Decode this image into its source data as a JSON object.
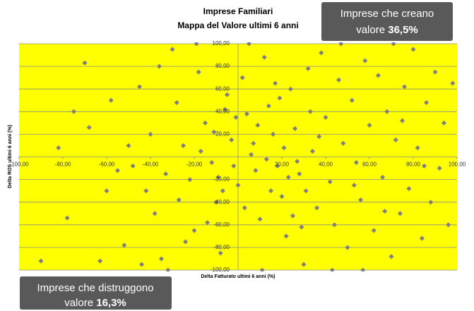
{
  "chart_data": {
    "type": "scatter",
    "title": "Imprese Familiari",
    "subtitle": "Mappa del Valore ultimi 6 anni",
    "x_label": "Delta Fatturato ultimi 6 anni (%)",
    "y_label": "Delta ROS ultimi 6 anni (%)",
    "annotations": [
      {
        "line1": "Imprese che creano",
        "line2": "valore",
        "value": "36,5%"
      },
      {
        "line1": "Imprese che distruggono",
        "line2": "valore",
        "value": "16,3%"
      }
    ],
    "background": "#ffff00",
    "color": "#7f7f7f",
    "grid": true,
    "xlim": [
      -100,
      100
    ],
    "ylim": [
      -100,
      100
    ],
    "xticks": [
      {
        "value": -100,
        "label": "-100,00"
      },
      {
        "value": -80,
        "label": "-80,00"
      },
      {
        "value": -60,
        "label": "-60,00"
      },
      {
        "value": -40,
        "label": "-40,00"
      },
      {
        "value": -20,
        "label": "-20,00"
      },
      {
        "value": 20,
        "label": "20,00"
      },
      {
        "value": 40,
        "label": "40,00"
      },
      {
        "value": 60,
        "label": "60,00"
      },
      {
        "value": 80,
        "label": "80,00"
      },
      {
        "value": 100,
        "label": "100,00"
      }
    ],
    "yticks": [
      {
        "value": 100,
        "label": "100,00"
      },
      {
        "value": 80,
        "label": "80,00"
      },
      {
        "value": 60,
        "label": "60,00"
      },
      {
        "value": 40,
        "label": "40,00"
      },
      {
        "value": 20,
        "label": "20,00"
      },
      {
        "value": -20,
        "label": "-20,00"
      },
      {
        "value": -40,
        "label": "-40,00"
      },
      {
        "value": -60,
        "label": "-60,00"
      },
      {
        "value": -80,
        "label": "-80,00"
      },
      {
        "value": -100,
        "label": "-100,00"
      }
    ],
    "x": [
      -70,
      -75,
      -68,
      -82,
      -55,
      -78,
      -60,
      -52,
      -45,
      -40,
      -38,
      -35,
      -30,
      -28,
      -25,
      -22,
      -20,
      -18,
      -15,
      -12,
      -10,
      -8,
      -5,
      -3,
      0,
      2,
      4,
      6,
      8,
      10,
      12,
      14,
      16,
      18,
      20,
      22,
      24,
      26,
      28,
      30,
      32,
      34,
      36,
      38,
      40,
      42,
      44,
      46,
      48,
      50,
      52,
      54,
      56,
      58,
      60,
      62,
      64,
      66,
      68,
      70,
      72,
      74,
      76,
      78,
      80,
      82,
      84,
      86,
      88,
      90,
      92,
      94,
      96,
      98,
      -48,
      -42,
      -33,
      -27,
      -14,
      -6,
      3,
      9,
      15,
      19,
      25,
      33,
      -17,
      -9,
      7,
      13,
      21,
      27,
      -2,
      -24,
      -36,
      -44,
      -58,
      -63,
      -19,
      5,
      47,
      -32,
      11,
      43,
      57,
      71,
      -90,
      -50,
      -7,
      17,
      29,
      37,
      53,
      67,
      75,
      85,
      -11,
      -1,
      23,
      31
    ],
    "y": [
      83,
      40,
      26,
      8,
      -12,
      -54,
      -30,
      -78,
      62,
      20,
      -50,
      -90,
      95,
      48,
      10,
      -20,
      -65,
      75,
      30,
      -5,
      -40,
      -85,
      55,
      15,
      -25,
      70,
      38,
      2,
      -12,
      -55,
      88,
      45,
      20,
      -8,
      -35,
      -70,
      60,
      25,
      -15,
      -95,
      78,
      5,
      -45,
      92,
      35,
      -22,
      -60,
      68,
      12,
      -80,
      50,
      -5,
      -38,
      85,
      28,
      -65,
      72,
      -18,
      40,
      -88,
      15,
      -50,
      62,
      -28,
      95,
      8,
      -72,
      48,
      -40,
      75,
      -10,
      30,
      -60,
      65,
      -8,
      -30,
      -15,
      -38,
      -58,
      42,
      -45,
      28,
      -30,
      52,
      -52,
      40,
      5,
      -18,
      12,
      -2,
      8,
      -4,
      -8,
      -75,
      80,
      -95,
      50,
      -92,
      100,
      100,
      100,
      -100,
      -100,
      -100,
      -100,
      100,
      -92,
      10,
      -30,
      65,
      -62,
      18,
      -25,
      -48,
      32,
      -8,
      22,
      35,
      -18,
      -30
    ]
  }
}
